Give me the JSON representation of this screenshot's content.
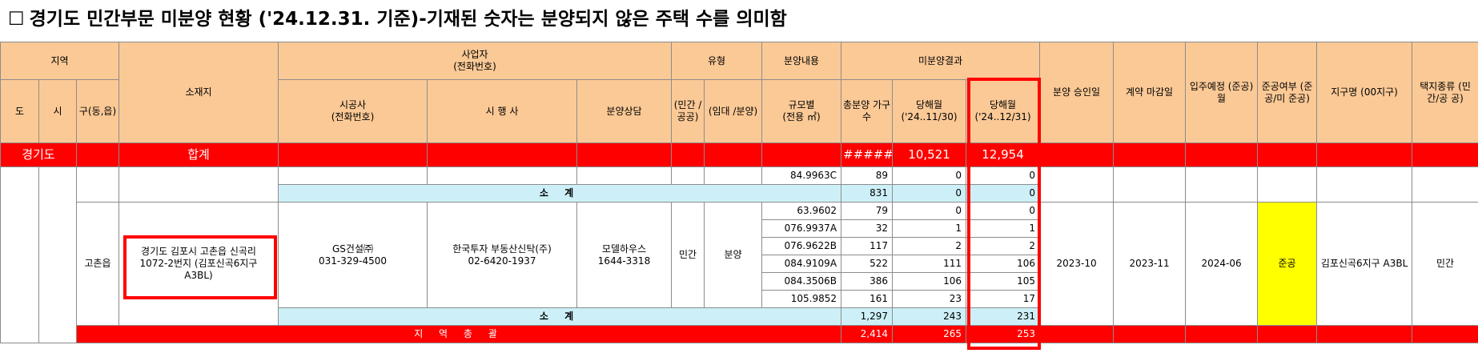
{
  "title": {
    "box": "☐",
    "text": "경기도 민간부문 미분양 현황 ('24.12.31. 기준)-기재된 숫자는 분양되지 않은 주택 수를 의미함"
  },
  "header": {
    "region": "지역",
    "location": "소재지",
    "operator": "사업자",
    "operator_sub": "(전화번호)",
    "type": "유형",
    "sale_content": "분양내용",
    "unsold_result": "미분양결과",
    "approval_date": "분양 승인일",
    "contract_deadline": "계약 마감일",
    "move_in": "입주예정 (준공)월",
    "completion": "준공여부 (준공/미 준공)",
    "district_name": "지구명 (00지구)",
    "land_type": "택지종류 (민간/공 공)",
    "do": "도",
    "si": "시",
    "gu": "구(동,읍)",
    "builder": "시공사",
    "builder_sub": "(전화번호)",
    "developer": "시 행 사",
    "sales_consult": "분양상담",
    "private_public": "(민간 /공공)",
    "rent_sale": "(임대 /분양)",
    "size": "규모별",
    "size_sub": "(전용 ㎡)",
    "total_units": "총분양 가구수",
    "month_prev": "당해월",
    "month_prev_sub": "('24..11/30)",
    "month_curr": "당해월",
    "month_curr_sub": "('24..12/31)"
  },
  "total_row": {
    "region": "경기도",
    "label": "합계",
    "total_units": "#####",
    "prev": "10,521",
    "curr": "12,954"
  },
  "top_partial": {
    "size": "84.9963C",
    "units": "89",
    "prev": "0",
    "curr": "0",
    "subtotal_label": "소 계",
    "subtotal_units": "831",
    "subtotal_prev": "0",
    "subtotal_curr": "0"
  },
  "project": {
    "gu": "고촌읍",
    "location": "경기도 김포시 고촌읍 신곡리 1072-2번지 (김포신곡6지구 A3BL)",
    "builder": "GS건설㈜",
    "builder_phone": "031-329-4500",
    "developer": "한국투자 부동산신탁(주)",
    "developer_phone": "02-6420-1937",
    "consult": "모델하우스",
    "consult_phone": "1644-3318",
    "type1": "민간",
    "type2": "분양",
    "approval": "2023-10",
    "deadline": "2023-11",
    "move_in": "2024-06",
    "completion": "준공",
    "district": "김포신곡6지구 A3BL",
    "land": "민간",
    "rows": [
      {
        "size": "63.9602",
        "units": "79",
        "prev": "0",
        "curr": "0"
      },
      {
        "size": "076.9937A",
        "units": "32",
        "prev": "1",
        "curr": "1"
      },
      {
        "size": "076.9622B",
        "units": "117",
        "prev": "2",
        "curr": "2"
      },
      {
        "size": "084.9109A",
        "units": "522",
        "prev": "111",
        "curr": "106"
      },
      {
        "size": "084.3506B",
        "units": "386",
        "prev": "106",
        "curr": "105"
      },
      {
        "size": "105.9852",
        "units": "161",
        "prev": "23",
        "curr": "17"
      }
    ],
    "subtotal_label": "소 계",
    "subtotal_units": "1,297",
    "subtotal_prev": "243",
    "subtotal_curr": "231"
  },
  "grand": {
    "label": "지 역 총 괄",
    "units": "2,414",
    "prev": "265",
    "curr": "253"
  }
}
